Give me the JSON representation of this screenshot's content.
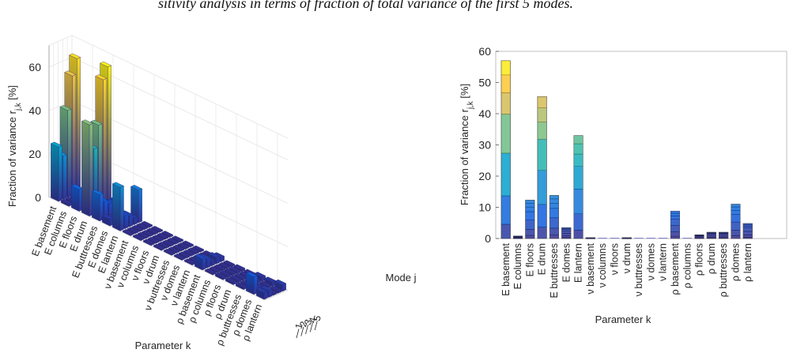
{
  "caption_fragment": "sitivity analysis in terms of fraction of total variance of the first 5 modes.",
  "chart_data": [
    {
      "type": "bar",
      "projection": "3d",
      "ylabel": "Fraction of variance r_{j,k} [%]",
      "xlabel": "Parameter k",
      "zlabel": "Mode j",
      "ylim": [
        0,
        70
      ],
      "yticks": [
        0,
        20,
        40,
        60
      ],
      "categories": [
        "E basement",
        "E columns",
        "E floors",
        "E drum",
        "E buttresses",
        "E domes",
        "E lantern",
        "ν basement",
        "ν columns",
        "ν floors",
        "ν drum",
        "ν buttresses",
        "ν domes",
        "ν lantern",
        "ρ basement",
        "ρ columns",
        "ρ floors",
        "ρ drum",
        "ρ buttresses",
        "ρ domes",
        "ρ lantern"
      ],
      "modes": [
        "1",
        "2",
        "3",
        "4",
        "5"
      ],
      "grid": true,
      "colormap": "parula",
      "series": [
        {
          "name": "1",
          "values": [
            25,
            1,
            10,
            42,
            12,
            3,
            20,
            0,
            0,
            0,
            0,
            0,
            0,
            0,
            5,
            0,
            1,
            1,
            1,
            8,
            3
          ]
        },
        {
          "name": "2",
          "values": [
            20,
            1,
            4,
            30,
            8,
            2,
            6,
            0,
            0,
            0,
            0,
            0,
            0,
            0,
            4,
            0,
            1,
            1,
            1,
            2,
            3
          ]
        },
        {
          "name": "3",
          "values": [
            40,
            1,
            3,
            40,
            6,
            1,
            5,
            0,
            0,
            0,
            0,
            0,
            0,
            0,
            2,
            0,
            1,
            1,
            1,
            1,
            1
          ]
        },
        {
          "name": "4",
          "values": [
            55,
            1,
            2,
            60,
            5,
            1,
            3,
            0,
            0,
            0,
            0,
            0,
            0,
            0,
            3,
            0,
            1,
            1,
            1,
            1,
            1
          ]
        },
        {
          "name": "5",
          "values": [
            62,
            1,
            10,
            65,
            5,
            1,
            15,
            0,
            0,
            0,
            0,
            0,
            0,
            0,
            2,
            0,
            1,
            1,
            2,
            2,
            3
          ]
        }
      ]
    },
    {
      "type": "bar",
      "stacked": true,
      "ylabel": "Fraction of variance r_{j,k} [%]",
      "xlabel": "Parameter k",
      "ylim": [
        0,
        60
      ],
      "yticks": [
        0,
        10,
        20,
        30,
        40,
        50,
        60
      ],
      "categories": [
        "E basement",
        "E columns",
        "E floors",
        "E drum",
        "E buttresses",
        "E domes",
        "E lantern",
        "ν basement",
        "ν columns",
        "ν floors",
        "ν drum",
        "ν buttresses",
        "ν domes",
        "ν lantern",
        "ρ basement",
        "ρ columns",
        "ρ floors",
        "ρ drum",
        "ρ buttresses",
        "ρ domes",
        "ρ lantern"
      ],
      "values": [
        57,
        0.8,
        12.3,
        45.5,
        13.8,
        3.5,
        33,
        0.3,
        0.1,
        0.1,
        0.3,
        0.1,
        0.1,
        0.1,
        8.8,
        0.1,
        1.2,
        2,
        2,
        11,
        4.8
      ],
      "segment_fractions": [
        0.08,
        0.16,
        0.24,
        0.22,
        0.12,
        0.1,
        0.08
      ]
    }
  ]
}
